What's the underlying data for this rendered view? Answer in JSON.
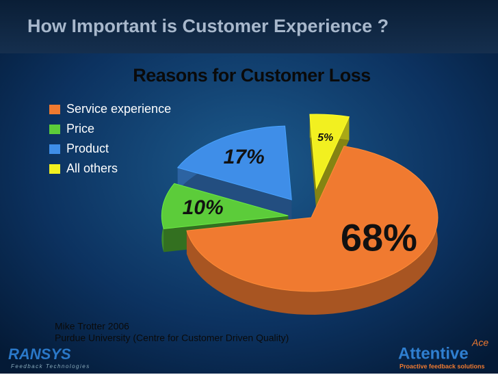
{
  "header": {
    "title": "How Important is Customer Experience ?"
  },
  "chart_data": {
    "type": "pie",
    "title": "Reasons for Customer Loss",
    "categories": [
      "Service experience",
      "Price",
      "Product",
      "All others"
    ],
    "values": [
      68,
      10,
      17,
      5
    ],
    "value_labels": [
      "68%",
      "10%",
      "17%",
      "5%"
    ],
    "colors": [
      "#f07a30",
      "#5ccc3a",
      "#3f8ee8",
      "#f2f020"
    ],
    "legend": "top-left"
  },
  "source": [
    "Mike Trotter 2006",
    "Purdue University (Centre for Customer Driven Quality)"
  ],
  "logos": {
    "left": "RANSYS",
    "left_tagline": "Feedback Technologies",
    "right": "Attentive",
    "right_mark": "Ace",
    "right_tagline": "Proactive feedback solutions"
  }
}
